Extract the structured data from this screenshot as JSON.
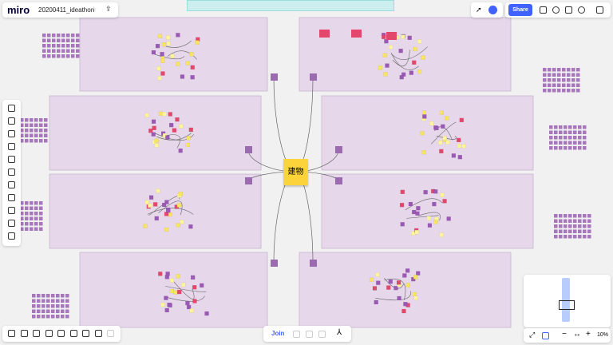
{
  "toolbar": {
    "logo": "miro",
    "board_name": "20200411_ideathon"
  },
  "share": "Share",
  "center_note": "建物",
  "join": "Join",
  "zoom": "10%"
}
